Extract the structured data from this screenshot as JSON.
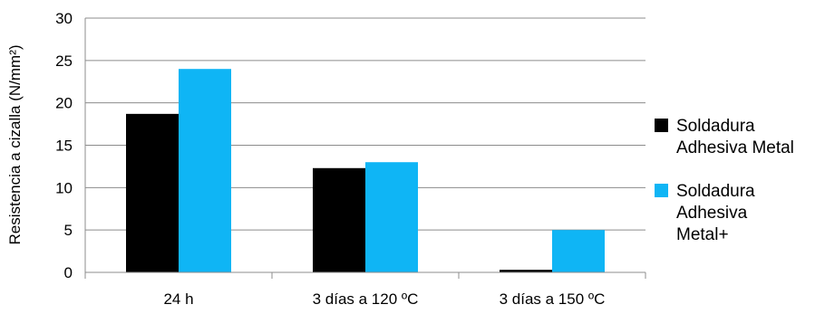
{
  "chart_data": {
    "type": "bar",
    "title": "",
    "xlabel": "",
    "ylabel": "Resistencia a cizalla (N/mm²)",
    "ylim": [
      0,
      30
    ],
    "yticks": [
      0,
      5,
      10,
      15,
      20,
      25,
      30
    ],
    "grid": true,
    "legend_position": "right",
    "categories": [
      "24 h",
      "3 días a 120 ºC",
      "3 días a 150 ºC"
    ],
    "series": [
      {
        "name": "Soldadura Adhesiva Metal",
        "legend_lines": [
          "Soldadura",
          "Adhesiva Metal"
        ],
        "color": "#000000",
        "values": [
          18.7,
          12.3,
          0.3
        ]
      },
      {
        "name": "Soldadura Adhesiva Metal+",
        "legend_lines": [
          "Soldadura",
          "Adhesiva",
          "Metal+"
        ],
        "color": "#0fb5f5",
        "values": [
          24.0,
          13.0,
          5.0
        ]
      }
    ]
  }
}
